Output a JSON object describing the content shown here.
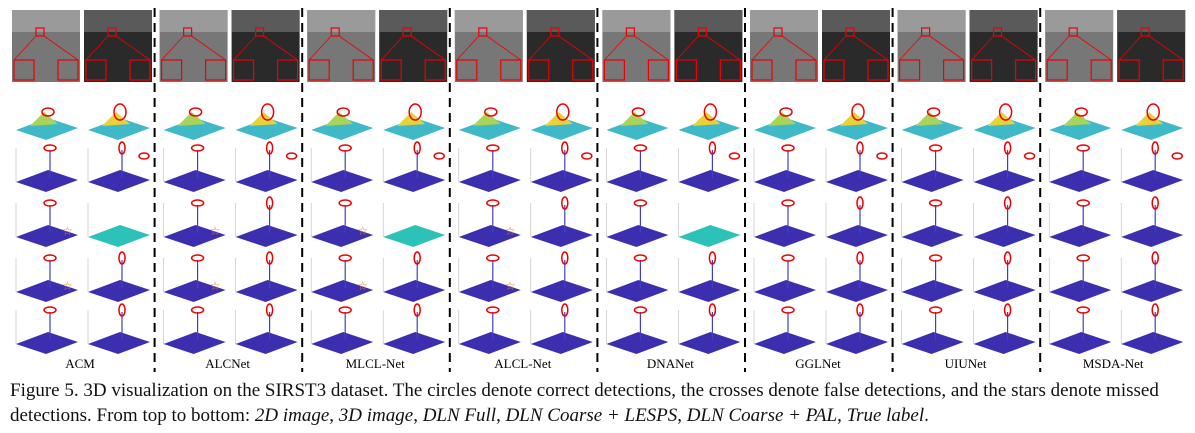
{
  "methods": [
    "ACM",
    "ALCNet",
    "MLCL-Net",
    "ALCL-Net",
    "DNANet",
    "GGLNet",
    "UIUNet",
    "MSDA-Net"
  ],
  "caption": {
    "segments": [
      {
        "text": "Figure 5. 3D visualization on the SIRST3 dataset. The circles denote correct detections, the crosses denote false detections, and the stars denote missed detections. From top to bottom: ",
        "italic": false
      },
      {
        "text": "2D image",
        "italic": true
      },
      {
        "text": ", ",
        "italic": false
      },
      {
        "text": "3D image",
        "italic": true
      },
      {
        "text": ", ",
        "italic": false
      },
      {
        "text": "DLN Full",
        "italic": true
      },
      {
        "text": ", ",
        "italic": false
      },
      {
        "text": "DLN Coarse + LESPS",
        "italic": true
      },
      {
        "text": ", ",
        "italic": false
      },
      {
        "text": "DLN Coarse + PAL",
        "italic": true
      },
      {
        "text": ", ",
        "italic": false
      },
      {
        "text": "True label",
        "italic": true
      },
      {
        "text": ".",
        "italic": false
      }
    ]
  }
}
